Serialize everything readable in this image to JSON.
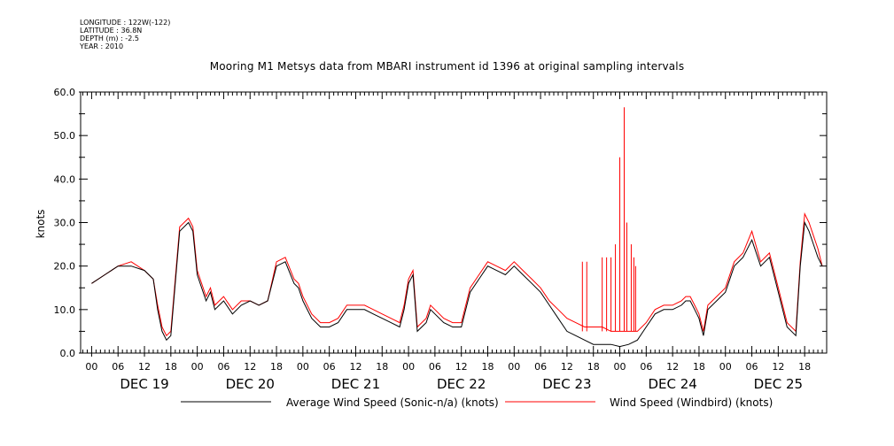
{
  "meta": {
    "longitude": "LONGITUDE : 122W(-122)",
    "latitude": "LATITUDE : 36.8N",
    "depth": "DEPTH (m) : -2.5",
    "year": "YEAR : 2010"
  },
  "chart_data": {
    "type": "line",
    "title": "Mooring M1 Metsys data from MBARI instrument id 1396 at original sampling intervals",
    "ylabel": "knots",
    "ylim": [
      0,
      60
    ],
    "yticks": [
      0,
      10,
      20,
      30,
      40,
      50,
      60
    ],
    "xlim_hours": [
      -2.5,
      167
    ],
    "hour_tick_labels": [
      "00",
      "06",
      "12",
      "18"
    ],
    "day_labels": [
      "DEC 19",
      "DEC 20",
      "DEC 21",
      "DEC 22",
      "DEC 23",
      "DEC 24",
      "DEC 25"
    ],
    "grid": false,
    "legend_position": "bottom",
    "colors": {
      "avg": "#000000",
      "windbird": "#ff0000"
    },
    "series": [
      {
        "name": "Average Wind Speed (Sonic-n/a) (knots)",
        "color": "#000000",
        "x": [
          0,
          3,
          6,
          9,
          12,
          14,
          15,
          16,
          17,
          18,
          20,
          22,
          23,
          24,
          26,
          27,
          28,
          30,
          32,
          34,
          36,
          38,
          40,
          42,
          44,
          46,
          47,
          48,
          50,
          52,
          54,
          56,
          58,
          60,
          62,
          64,
          66,
          68,
          70,
          71,
          72,
          73,
          74,
          75,
          76,
          77,
          78,
          80,
          82,
          84,
          86,
          88,
          90,
          92,
          94,
          96,
          98,
          100,
          102,
          104,
          106,
          108,
          110,
          112,
          114,
          116,
          118,
          120,
          122,
          124,
          126,
          128,
          130,
          132,
          134,
          135,
          136,
          137,
          138,
          139,
          140,
          142,
          144,
          146,
          148,
          150,
          152,
          154,
          156,
          158,
          160,
          161,
          162,
          163,
          164,
          165,
          166
        ],
        "y": [
          16,
          18,
          20,
          20,
          19,
          17,
          10,
          5,
          3,
          4,
          28,
          30,
          28,
          18,
          12,
          14,
          10,
          12,
          9,
          11,
          12,
          11,
          12,
          20,
          21,
          16,
          15,
          12,
          8,
          6,
          6,
          7,
          10,
          10,
          10,
          9,
          8,
          7,
          6,
          10,
          16,
          18,
          5,
          6,
          7,
          10,
          9,
          7,
          6,
          6,
          14,
          17,
          20,
          19,
          18,
          20,
          18,
          16,
          14,
          11,
          8,
          5,
          4,
          3,
          2,
          2,
          2,
          1.5,
          2,
          3,
          6,
          9,
          10,
          10,
          11,
          12,
          12,
          10,
          8,
          4,
          10,
          12,
          14,
          20,
          22,
          26,
          20,
          22,
          14,
          6,
          4,
          20,
          30,
          28,
          25,
          22,
          20
        ]
      },
      {
        "name": "Wind Speed (Windbird) (knots)",
        "color": "#ff0000",
        "x": [
          0,
          3,
          6,
          9,
          12,
          14,
          15,
          16,
          17,
          18,
          20,
          22,
          23,
          24,
          26,
          27,
          28,
          30,
          32,
          34,
          36,
          38,
          40,
          42,
          44,
          46,
          47,
          48,
          50,
          52,
          54,
          56,
          58,
          60,
          62,
          64,
          66,
          68,
          70,
          71,
          72,
          73,
          74,
          75,
          76,
          77,
          78,
          80,
          82,
          84,
          86,
          88,
          90,
          92,
          94,
          96,
          98,
          100,
          102,
          104,
          106,
          108,
          110,
          112,
          114,
          116,
          118,
          120,
          122,
          124,
          126,
          128,
          130,
          132,
          134,
          135,
          136,
          137,
          138,
          139,
          140,
          142,
          144,
          146,
          148,
          150,
          152,
          154,
          156,
          158,
          160,
          161,
          162,
          163,
          164,
          165,
          166
        ],
        "y": [
          16,
          18,
          20,
          21,
          19,
          17,
          11,
          6,
          4,
          5,
          29,
          31,
          29,
          19,
          13,
          15,
          11,
          13,
          10,
          12,
          12,
          11,
          12,
          21,
          22,
          17,
          16,
          13,
          9,
          7,
          7,
          8,
          11,
          11,
          11,
          10,
          9,
          8,
          7,
          11,
          17,
          19,
          6,
          7,
          8,
          11,
          10,
          8,
          7,
          7,
          15,
          18,
          21,
          20,
          19,
          21,
          19,
          17,
          15,
          12,
          10,
          8,
          7,
          6,
          6,
          6,
          5,
          5,
          5,
          5,
          7,
          10,
          11,
          11,
          12,
          13,
          13,
          11,
          9,
          5,
          11,
          13,
          15,
          21,
          23,
          28,
          21,
          23,
          15,
          7,
          5,
          21,
          32,
          30,
          27,
          24,
          20
        ]
      }
    ],
    "spikes": {
      "series": "Wind Speed (Windbird) (knots)",
      "x": [
        111.5,
        112.5,
        116,
        117,
        118,
        119,
        120,
        121,
        121.6,
        122.6,
        123.2,
        123.6
      ],
      "y": [
        21,
        21,
        22,
        22,
        22,
        25,
        45,
        56.5,
        30,
        25,
        22,
        20
      ]
    }
  }
}
